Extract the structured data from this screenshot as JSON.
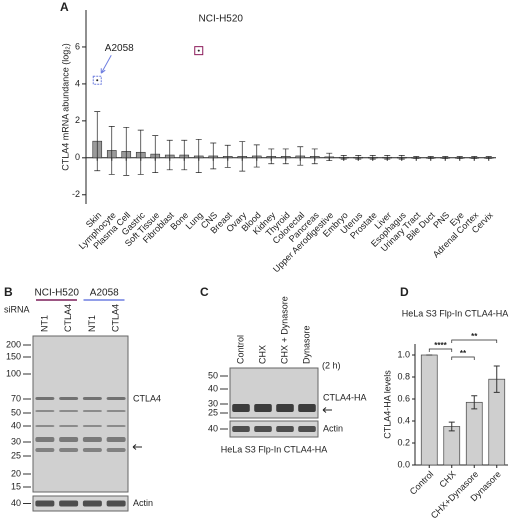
{
  "chart_data": [
    {
      "type": "bar",
      "panel": "A",
      "y_label": "CTLA4 mRNA abundance (log₂)",
      "categories": [
        "Skin",
        "Lymphocyte",
        "Plasma Cell",
        "Gastric",
        "Soft Tissue",
        "Fibroblast",
        "Bone",
        "Lung",
        "CNS",
        "Breast",
        "Ovary",
        "Blood",
        "Kidney",
        "Thyroid",
        "Colorectal",
        "Pancreas",
        "Upper Aerodigestive",
        "Embryo",
        "Uterus",
        "Prostate",
        "Liver",
        "Esophagus",
        "Urinary Tract",
        "Bile Duct",
        "PNS",
        "Eye",
        "Adrenal Cortex",
        "Cervix"
      ],
      "values": [
        0.9,
        0.4,
        0.35,
        0.3,
        0.2,
        0.15,
        0.15,
        0.1,
        0.1,
        0.08,
        0.08,
        0.1,
        0.08,
        0.08,
        0.1,
        0.08,
        0.05,
        0.03,
        0.03,
        0.03,
        0.03,
        0.03,
        0.02,
        0.02,
        0.02,
        0.02,
        0.02,
        0.02
      ],
      "errors": [
        1.6,
        1.3,
        1.3,
        1.2,
        1.0,
        0.8,
        0.8,
        0.9,
        0.7,
        0.6,
        0.8,
        0.6,
        0.4,
        0.4,
        0.5,
        0.4,
        0.2,
        0.1,
        0.1,
        0.1,
        0.1,
        0.1,
        0.05,
        0.05,
        0.05,
        0.05,
        0.05,
        0.05
      ],
      "color": "#9a9a9a",
      "ylim": [
        -2.5,
        8
      ],
      "yticks": [
        -2,
        0,
        2,
        4,
        6
      ],
      "annotations": [
        {
          "text": "A2058",
          "category": "Skin",
          "value": 4.2,
          "color": "#6f7fe0"
        },
        {
          "text": "NCI-H520",
          "category": "Lung",
          "value": 5.8,
          "color": "#8b1a5a"
        }
      ]
    },
    {
      "type": "bar",
      "panel": "D",
      "title": "HeLa S3 Flp-In CTLA4-HA",
      "title_color": "#5bc8c8",
      "y_label": "CTLA4-HA levels",
      "categories": [
        "Control",
        "CHX",
        "CHX+Dynasore",
        "Dynasore"
      ],
      "values": [
        1.0,
        0.35,
        0.57,
        0.78
      ],
      "errors": [
        0,
        0.04,
        0.06,
        0.12
      ],
      "color": "#cfcfcf",
      "ylim": [
        0,
        1.1
      ],
      "yticks": [
        {
          "value": 0,
          "label": "0.0"
        },
        {
          "value": 0.2,
          "label": "0.2"
        },
        {
          "value": 0.4,
          "label": "0.4"
        },
        {
          "value": 0.6,
          "label": "0.6"
        },
        {
          "value": 0.8,
          "label": "0.8"
        },
        {
          "value": 1,
          "label": "1.0"
        }
      ],
      "significance": [
        {
          "from": 0,
          "to": 1,
          "label": "****"
        },
        {
          "from": 1,
          "to": 2,
          "label": "**"
        },
        {
          "from": 1,
          "to": 3,
          "label": "**"
        }
      ]
    }
  ],
  "blots": [
    {
      "panel": "B",
      "row_label": "siRNA",
      "groups": [
        {
          "name": "NCI-H520",
          "color": "#7b1f5a"
        },
        {
          "name": "A2058",
          "color": "#6f7fe0"
        }
      ],
      "lanes": [
        "NT1",
        "CTLA4",
        "NT1",
        "CTLA4"
      ],
      "markers": [
        200,
        150,
        100,
        70,
        50,
        40,
        30,
        25,
        20,
        15
      ],
      "actin_marker": 40,
      "band_label": "CTLA4",
      "loading_label": "Actin"
    },
    {
      "panel": "C",
      "lanes": [
        "Control",
        "CHX",
        "CHX + Dynasore",
        "Dynasore"
      ],
      "time": "(2 h)",
      "markers": [
        50,
        40,
        30,
        25
      ],
      "actin_marker": 40,
      "band_label": "CTLA4-HA",
      "loading_label": "Actin",
      "caption": "HeLa S3 Flp-In CTLA4-HA",
      "caption_color": "#5bc8c8"
    }
  ]
}
